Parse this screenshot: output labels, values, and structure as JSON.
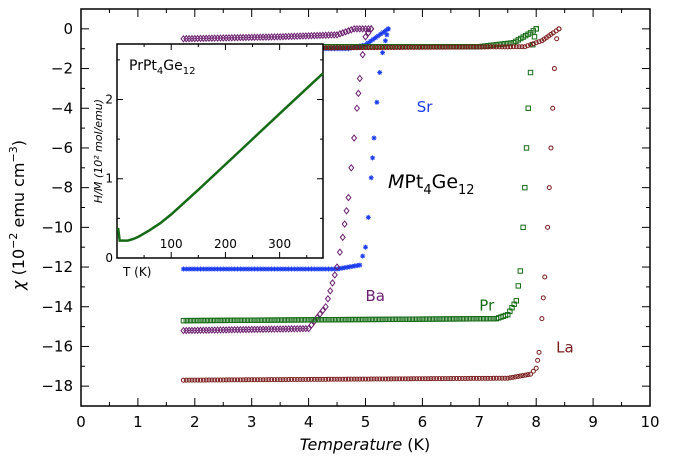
{
  "chart_data": [
    {
      "type": "scatter",
      "title": "",
      "xlabel": "Temperature",
      "xlabel_unit": " (K)",
      "ylabel_symbol": "χ",
      "ylabel_rest": " (10",
      "ylabel_exp": "−2",
      "ylabel_units": " emu cm",
      "ylabel_units_exp": "−3",
      "ylabel_close": ")",
      "xlim": [
        0,
        10
      ],
      "ylim": [
        -19,
        1
      ],
      "x_ticks": [
        0,
        1,
        2,
        3,
        4,
        5,
        6,
        7,
        8,
        9,
        10
      ],
      "x_tick_labels": [
        "0",
        "1",
        "2",
        "3",
        "4",
        "5",
        "6",
        "7",
        "8",
        "9",
        "10"
      ],
      "y_ticks": [
        0,
        -2,
        -4,
        -6,
        -8,
        -10,
        -12,
        -14,
        -16,
        -18
      ],
      "y_tick_labels": [
        "0",
        "−2",
        "−4",
        "−6",
        "−8",
        "−10",
        "−12",
        "−14",
        "−16",
        "−18"
      ],
      "annotation": {
        "italic": "M",
        "text": "Pt",
        "sub1": "4",
        "text2": "Ge",
        "sub2": "12"
      },
      "series": [
        {
          "name": "Sr",
          "color": "#1c3cf0",
          "marker": "asterisk",
          "zfc": {
            "x": [
              1.8,
              4.5,
              4.9,
              5.0,
              5.05,
              5.1,
              5.15,
              5.2,
              5.25,
              5.3,
              5.35,
              5.4
            ],
            "y": [
              -12.1,
              -12.1,
              -11.9,
              -11.0,
              -9.5,
              -7.5,
              -5.5,
              -3.7,
              -2.2,
              -1.2,
              -0.6,
              0
            ]
          },
          "fc": {
            "x": [
              1.8,
              4.7,
              5.0,
              5.4
            ],
            "y": [
              -1.0,
              -1.0,
              -0.8,
              0
            ]
          }
        },
        {
          "name": "Ba",
          "color": "#6b1e6e",
          "marker": "diamond",
          "zfc": {
            "x": [
              1.8,
              4.0,
              4.3,
              4.5,
              4.6,
              4.7,
              4.75,
              4.8,
              4.85,
              4.9,
              4.95,
              5.0,
              5.1
            ],
            "y": [
              -15.2,
              -15.1,
              -14.0,
              -12.0,
              -10.5,
              -8.5,
              -7.0,
              -5.5,
              -4.0,
              -2.5,
              -1.3,
              -0.4,
              0
            ]
          },
          "fc": {
            "x": [
              1.8,
              3.5,
              4.5,
              4.8,
              5.1
            ],
            "y": [
              -0.5,
              -0.4,
              -0.3,
              0.0,
              0
            ]
          }
        },
        {
          "name": "Pr",
          "color": "#156b15",
          "marker": "square",
          "zfc": {
            "x": [
              1.8,
              7.3,
              7.5,
              7.65,
              7.72,
              7.77,
              7.8,
              7.83,
              7.86,
              7.9,
              7.94,
              8.0
            ],
            "y": [
              -14.7,
              -14.6,
              -14.4,
              -13.7,
              -12.2,
              -10.0,
              -8.0,
              -6.0,
              -4.0,
              -2.2,
              -0.8,
              0
            ]
          },
          "fc": {
            "x": [
              1.8,
              7.0,
              7.6,
              7.9,
              8.0
            ],
            "y": [
              -0.9,
              -0.9,
              -0.7,
              -0.2,
              0
            ]
          }
        },
        {
          "name": "La",
          "color": "#7a1c1c",
          "marker": "circle",
          "zfc": {
            "x": [
              1.8,
              7.5,
              7.9,
              8.0,
              8.05,
              8.1,
              8.15,
              8.2,
              8.23,
              8.26,
              8.29,
              8.32,
              8.36,
              8.4
            ],
            "y": [
              -17.7,
              -17.6,
              -17.4,
              -17.1,
              -16.3,
              -14.6,
              -12.5,
              -10.0,
              -8.0,
              -6.0,
              -4.0,
              -2.0,
              -0.5,
              0
            ]
          },
          "fc": {
            "x": [
              1.8,
              7.8,
              8.1,
              8.3,
              8.4
            ],
            "y": [
              -1.0,
              -0.9,
              -0.6,
              -0.2,
              0
            ]
          }
        }
      ],
      "legend": "inline labels"
    },
    {
      "type": "line",
      "title": "PrPt4Ge12",
      "title_parts": {
        "a": "PrPt",
        "sub1": "4",
        "b": "Ge",
        "sub2": "12"
      },
      "xlabel": "T (K)",
      "ylabel": "H/M (10² mol/emu)",
      "xlim": [
        0,
        380
      ],
      "ylim": [
        0,
        2.7
      ],
      "x_ticks": [
        100,
        200,
        300
      ],
      "x_tick_labels": [
        "100",
        "200",
        "300"
      ],
      "y_ticks": [
        0,
        1,
        2
      ],
      "y_tick_labels": [
        "0",
        "1",
        "2"
      ],
      "series": [
        {
          "name": "PrPt4Ge12",
          "color": "#156b15",
          "x": [
            2,
            5,
            10,
            20,
            30,
            40,
            50,
            60,
            80,
            100,
            150,
            200,
            250,
            300,
            350,
            380
          ],
          "y": [
            0.38,
            0.22,
            0.22,
            0.22,
            0.24,
            0.27,
            0.31,
            0.35,
            0.44,
            0.55,
            0.86,
            1.18,
            1.5,
            1.82,
            2.14,
            2.33
          ]
        }
      ]
    }
  ]
}
